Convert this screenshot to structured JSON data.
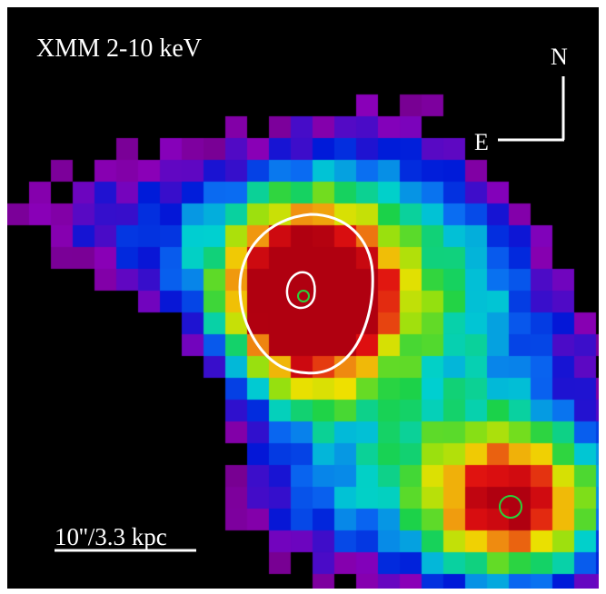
{
  "image": {
    "band_label": "XMM 2-10 keV",
    "compass": {
      "north": "N",
      "east": "E"
    },
    "scale_bar_label": "10''/3.3 kpc",
    "colormap": [
      "#000000",
      "#600060",
      "#8a00b8",
      "#0018d8",
      "#0a6cf2",
      "#00d0d0",
      "#1ad24a",
      "#90e010",
      "#f0e000",
      "#f09010",
      "#e01010",
      "#b00010"
    ],
    "contour_color": "#ffffff",
    "source_marker_color": "#2ad23a"
  }
}
